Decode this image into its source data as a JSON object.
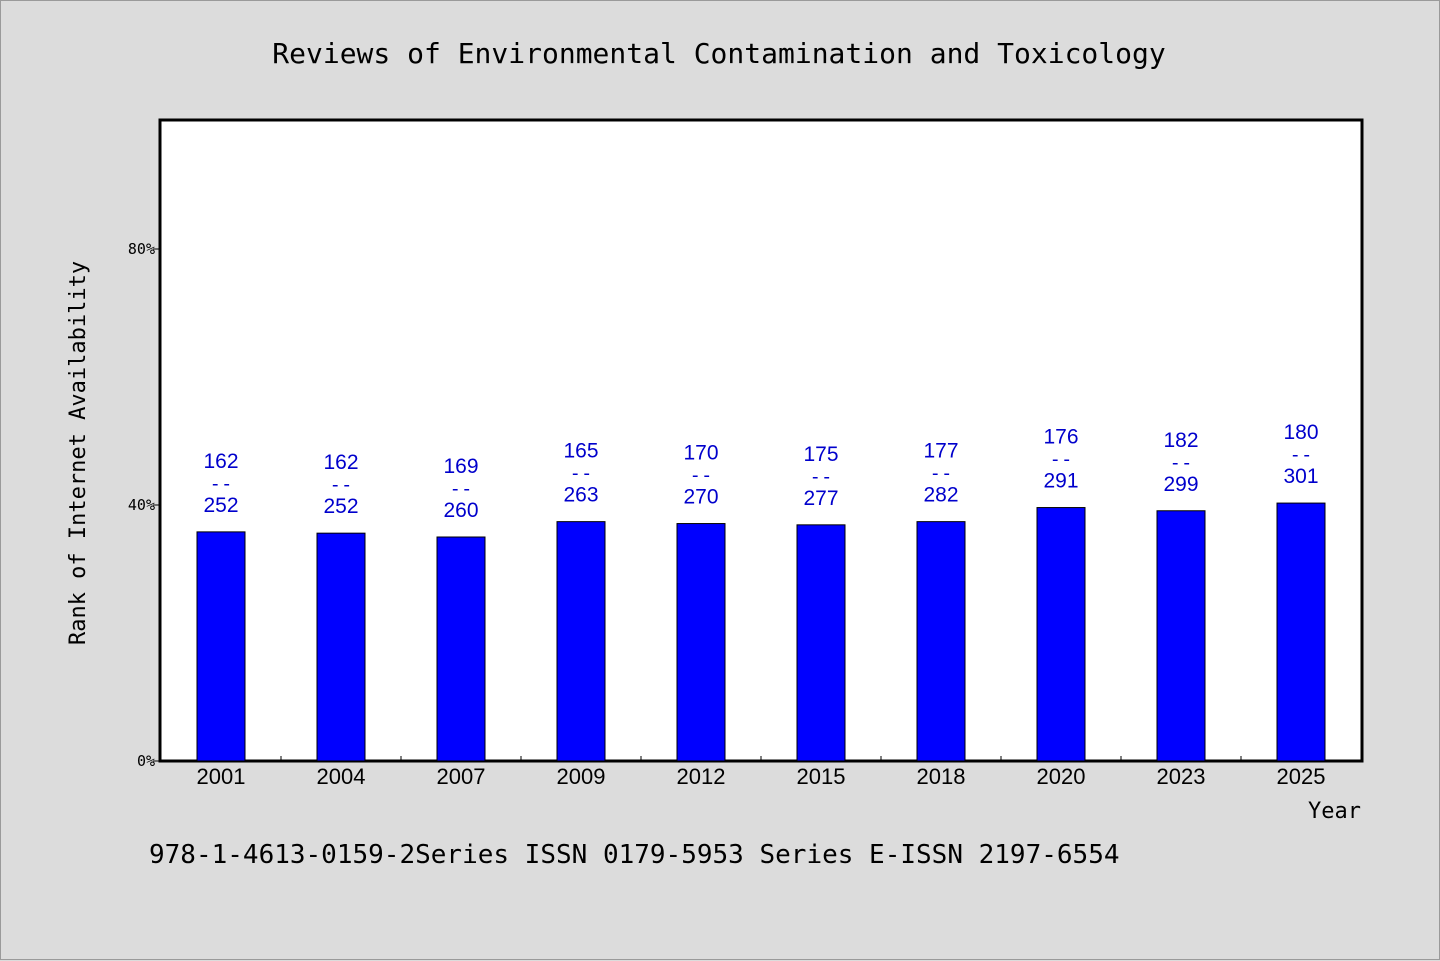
{
  "chart_data": {
    "type": "bar",
    "title": "Reviews of Environmental Contamination and Toxicology",
    "xlabel": "Year",
    "ylabel": "Rank of Internet Availability",
    "footer": "978-1-4613-0159-2Series ISSN 0179-5953 Series E-ISSN 2197-6554",
    "ylim": [
      0,
      100
    ],
    "yticks": [
      {
        "value": 0,
        "label": "0%"
      },
      {
        "value": 40,
        "label": "40%"
      },
      {
        "value": 80,
        "label": "80%"
      }
    ],
    "grid": false,
    "legend": "none",
    "bar_color": "#0000ff",
    "label_color": "#0000cc",
    "categories": [
      "2001",
      "2004",
      "2007",
      "2009",
      "2012",
      "2015",
      "2018",
      "2020",
      "2023",
      "2025"
    ],
    "values": [
      35.8,
      35.6,
      35.0,
      37.4,
      37.1,
      36.9,
      37.4,
      39.6,
      39.1,
      40.3
    ],
    "label_top": [
      "162",
      "162",
      "169",
      "165",
      "170",
      "175",
      "177",
      "176",
      "182",
      "180"
    ],
    "label_sep": "--",
    "label_bottom": [
      "252",
      "252",
      "260",
      "263",
      "270",
      "277",
      "282",
      "291",
      "299",
      "301"
    ]
  }
}
